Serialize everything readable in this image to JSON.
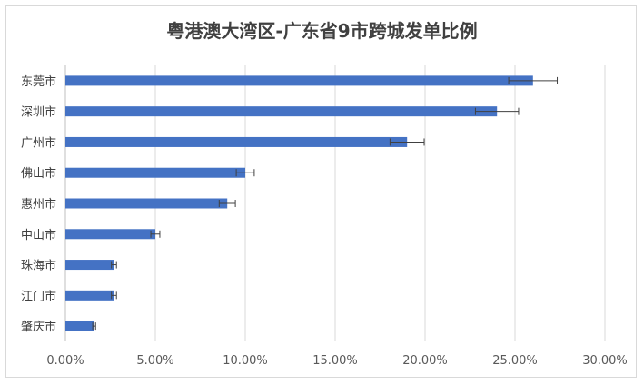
{
  "chart_data": {
    "type": "bar",
    "orientation": "horizontal",
    "title": "粤港澳大湾区-广东省9市跨城发单比例",
    "categories": [
      "东莞市",
      "深圳市",
      "广州市",
      "佛山市",
      "惠州市",
      "中山市",
      "珠海市",
      "江门市",
      "肇庆市"
    ],
    "values": [
      0.26,
      0.24,
      0.19,
      0.1,
      0.09,
      0.05,
      0.027,
      0.027,
      0.016
    ],
    "error": [
      0.0135,
      0.012,
      0.0095,
      0.005,
      0.0045,
      0.0025,
      0.0014,
      0.0014,
      0.0008
    ],
    "xlim": [
      0,
      0.3
    ],
    "x_ticks": [
      "0.00%",
      "5.00%",
      "10.00%",
      "15.00%",
      "20.00%",
      "25.00%",
      "30.00%"
    ],
    "xlabel": "",
    "ylabel": "",
    "grid": "vertical",
    "legend": "none",
    "colors": {
      "bar": "#4472c4",
      "grid": "#d9d9d9",
      "error_bar": "#404040"
    }
  }
}
